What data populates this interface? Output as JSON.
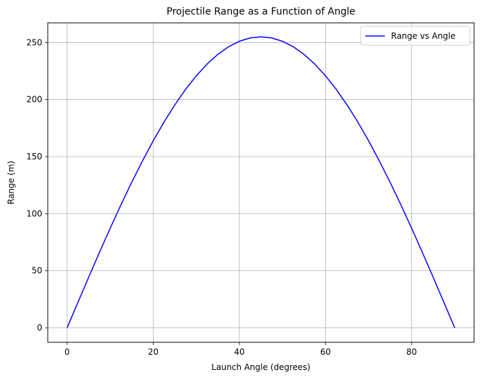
{
  "chart_data": {
    "type": "line",
    "title": "Projectile Range as a Function of Angle",
    "xlabel": "Launch Angle (degrees)",
    "ylabel": "Range (m)",
    "xlim": [
      -4.5,
      94.5
    ],
    "ylim": [
      -12.7,
      267.2
    ],
    "xticks": [
      0,
      20,
      40,
      60,
      80
    ],
    "yticks": [
      0,
      50,
      100,
      150,
      200,
      250
    ],
    "grid": true,
    "legend_position": "top-right",
    "series": [
      {
        "name": "Range vs Angle",
        "color": "#0000ff",
        "x": [
          0,
          2.5,
          5,
          7.5,
          10,
          12.5,
          15,
          17.5,
          20,
          22.5,
          25,
          27.5,
          30,
          32.5,
          35,
          37.5,
          40,
          42.5,
          45,
          47.5,
          50,
          52.5,
          55,
          57.5,
          60,
          62.5,
          65,
          67.5,
          70,
          72.5,
          75,
          77.5,
          80,
          82.5,
          85,
          87.5,
          90
        ],
        "y": [
          0,
          22.2,
          44.3,
          66.0,
          87.2,
          107.8,
          127.5,
          146.2,
          163.9,
          180.3,
          195.3,
          208.9,
          220.8,
          231.1,
          239.6,
          246.3,
          251.1,
          254.0,
          255.0,
          254.0,
          251.1,
          246.3,
          239.6,
          231.1,
          220.8,
          208.9,
          195.3,
          180.3,
          163.9,
          146.2,
          127.5,
          107.8,
          87.2,
          66.0,
          44.3,
          22.2,
          0
        ]
      }
    ]
  }
}
